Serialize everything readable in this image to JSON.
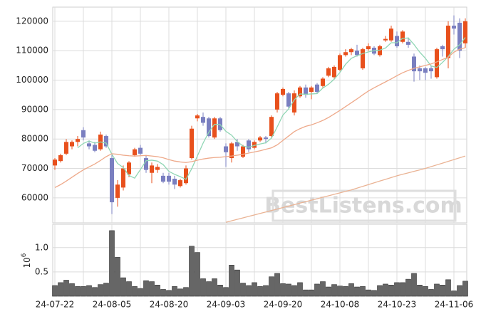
{
  "chart_data": {
    "type": "candlestick",
    "categories": [
      "24-07-22",
      null,
      null,
      null,
      null,
      null,
      null,
      null,
      null,
      null,
      "24-08-05",
      null,
      null,
      null,
      null,
      null,
      null,
      null,
      null,
      null,
      "24-08-20",
      null,
      null,
      null,
      null,
      null,
      null,
      null,
      null,
      null,
      "24-09-03",
      null,
      null,
      null,
      null,
      null,
      null,
      null,
      null,
      null,
      "24-09-20",
      null,
      null,
      null,
      null,
      null,
      null,
      null,
      null,
      null,
      "24-10-08",
      null,
      null,
      null,
      null,
      null,
      null,
      null,
      null,
      null,
      "24-10-23",
      null,
      null,
      null,
      null,
      null,
      null,
      null,
      null,
      null,
      "24-11-06",
      null,
      null
    ],
    "open": [
      71000,
      72500,
      75000,
      77500,
      79000,
      83000,
      78500,
      78000,
      76500,
      81000,
      73500,
      60000,
      63500,
      68000,
      74500,
      77000,
      73500,
      68500,
      69500,
      67500,
      67500,
      66500,
      64000,
      65000,
      73500,
      87000,
      87500,
      87000,
      80500,
      87000,
      77500,
      73500,
      79000,
      74000,
      79500,
      77000,
      79500,
      80500,
      81000,
      90000,
      95000,
      95500,
      89000,
      94500,
      97500,
      96000,
      98500,
      98000,
      101500,
      101000,
      103500,
      108500,
      109500,
      110000,
      104000,
      110500,
      111000,
      108500,
      113500,
      113500,
      115000,
      113000,
      113000,
      108000,
      104000,
      104000,
      104000,
      101000,
      111500,
      107500,
      118500,
      119500,
      112500
    ],
    "high": [
      73500,
      75000,
      80000,
      79500,
      81000,
      84000,
      79500,
      79000,
      82500,
      81500,
      75000,
      66000,
      71000,
      72500,
      77000,
      78000,
      74500,
      72000,
      71500,
      68500,
      68500,
      67500,
      66500,
      71000,
      84500,
      88500,
      89000,
      87500,
      87500,
      87500,
      78500,
      79000,
      80000,
      78000,
      80000,
      79500,
      81000,
      81000,
      88000,
      96000,
      97500,
      96000,
      96500,
      98000,
      98500,
      98000,
      99000,
      101000,
      104500,
      105000,
      109000,
      110500,
      111000,
      112000,
      111000,
      112500,
      111500,
      112000,
      115000,
      118500,
      116500,
      117000,
      114500,
      109000,
      105000,
      104500,
      105000,
      111000,
      112000,
      120000,
      122000,
      121000,
      121000
    ],
    "low": [
      69500,
      72000,
      74500,
      76500,
      77500,
      79500,
      76500,
      75500,
      76000,
      77000,
      54500,
      57000,
      62500,
      67000,
      74000,
      74500,
      68500,
      65000,
      68500,
      65000,
      64500,
      63000,
      63500,
      64500,
      73000,
      86000,
      84500,
      80500,
      80000,
      82500,
      70500,
      72000,
      76000,
      73500,
      75500,
      76500,
      79000,
      78500,
      80500,
      89000,
      94500,
      90000,
      88000,
      94000,
      94000,
      93500,
      95500,
      97500,
      101000,
      100500,
      103000,
      108000,
      108500,
      108000,
      103500,
      110000,
      108500,
      108000,
      113000,
      113000,
      111000,
      112500,
      111000,
      99500,
      100000,
      100000,
      100500,
      100500,
      108000,
      104000,
      115500,
      107500,
      111000
    ],
    "close": [
      73000,
      74500,
      79000,
      79000,
      80000,
      80500,
      77500,
      76000,
      81500,
      77500,
      58500,
      64500,
      70000,
      72000,
      76500,
      75000,
      69500,
      71000,
      70500,
      65500,
      65500,
      64500,
      66000,
      70000,
      83500,
      88000,
      85500,
      81000,
      87000,
      83000,
      75500,
      78500,
      77500,
      77500,
      76500,
      79000,
      80500,
      80000,
      87500,
      95500,
      97000,
      91000,
      95500,
      97500,
      95000,
      97500,
      96000,
      100500,
      104000,
      104500,
      108500,
      109500,
      110500,
      108500,
      110500,
      111500,
      109000,
      111500,
      114000,
      117500,
      111500,
      116500,
      112000,
      103000,
      103000,
      102500,
      103000,
      110500,
      110500,
      118500,
      117500,
      110000,
      120000
    ],
    "up_color": "#e8501c",
    "down_color": "#7a7fc0",
    "lines": [
      {
        "color": "#8fd6b4",
        "values": [
          null,
          null,
          null,
          null,
          77000,
          78500,
          79300,
          78600,
          79000,
          78600,
          74800,
          71700,
          70300,
          67600,
          66700,
          69600,
          72600,
          72800,
          72500,
          71300,
          69000,
          68000,
          67200,
          66300,
          69900,
          74200,
          78600,
          82300,
          85000,
          84900,
          82600,
          81300,
          79100,
          77600,
          77200,
          77800,
          78300,
          78700,
          80300,
          84100,
          88100,
          90200,
          93300,
          95300,
          95200,
          95300,
          95400,
          97300,
          98600,
          100300,
          102600,
          105400,
          107400,
          108300,
          109000,
          109600,
          110000,
          110200,
          110900,
          112700,
          112700,
          114200,
          114300,
          112100,
          109500,
          107400,
          104800,
          104300,
          106000,
          108000,
          110500,
          112000,
          114500
        ]
      },
      {
        "color": "#eea98a",
        "values": [
          63500,
          64500,
          65700,
          67000,
          68300,
          69500,
          70500,
          71500,
          72700,
          74000,
          75000,
          74800,
          74500,
          74300,
          74200,
          74300,
          74400,
          74200,
          74000,
          73600,
          73000,
          72500,
          72200,
          72000,
          72300,
          72800,
          73200,
          73500,
          73700,
          73800,
          74000,
          74200,
          74500,
          74800,
          75200,
          75600,
          76000,
          76500,
          77000,
          78000,
          79500,
          81000,
          82500,
          83500,
          84300,
          84800,
          85500,
          86300,
          87300,
          88500,
          89700,
          91000,
          92300,
          93600,
          95000,
          96300,
          97400,
          98400,
          99400,
          100400,
          101500,
          102500,
          103300,
          104000,
          104500,
          105000,
          105500,
          106200,
          107000,
          107800,
          109500,
          110500,
          111000
        ]
      },
      {
        "color": "#eab394",
        "values": [
          null,
          null,
          null,
          null,
          null,
          null,
          null,
          null,
          null,
          null,
          null,
          null,
          null,
          null,
          null,
          null,
          null,
          null,
          null,
          null,
          null,
          null,
          null,
          null,
          null,
          null,
          null,
          null,
          null,
          null,
          51700,
          52200,
          52700,
          53200,
          53700,
          54200,
          54700,
          55200,
          55700,
          56200,
          56700,
          57200,
          57700,
          58200,
          58700,
          59200,
          59700,
          60200,
          60700,
          61200,
          61700,
          62200,
          62700,
          63300,
          63900,
          64500,
          65100,
          65700,
          66300,
          66900,
          67500,
          68000,
          68500,
          69000,
          69500,
          70000,
          70600,
          71200,
          71800,
          72400,
          73000,
          73600,
          74200
        ]
      }
    ],
    "ylim": [
      51500,
      124800
    ],
    "yticks": [
      60000,
      70000,
      80000,
      90000,
      100000,
      110000,
      120000
    ],
    "grid": true,
    "watermark": "BestListens.com",
    "volume": {
      "color": "#666666",
      "values": [
        0.22,
        0.28,
        0.33,
        0.26,
        0.2,
        0.2,
        0.22,
        0.18,
        0.24,
        0.27,
        1.35,
        0.8,
        0.38,
        0.3,
        0.2,
        0.16,
        0.32,
        0.3,
        0.23,
        0.14,
        0.12,
        0.2,
        0.15,
        0.18,
        1.03,
        0.9,
        0.36,
        0.3,
        0.36,
        0.23,
        0.18,
        0.64,
        0.54,
        0.27,
        0.22,
        0.28,
        0.2,
        0.22,
        0.4,
        0.47,
        0.26,
        0.25,
        0.22,
        0.28,
        0.13,
        0.13,
        0.25,
        0.3,
        0.19,
        0.24,
        0.21,
        0.2,
        0.26,
        0.19,
        0.2,
        0.13,
        0.12,
        0.22,
        0.25,
        0.23,
        0.28,
        0.28,
        0.35,
        0.47,
        0.23,
        0.2,
        0.14,
        0.25,
        0.23,
        0.34,
        0.11,
        0.22,
        0.31
      ],
      "ylim": [
        0,
        1.48
      ],
      "yticks": [
        {
          "value": 0.5,
          "label": "0.5"
        },
        {
          "value": 1,
          "label": "1.0"
        }
      ],
      "axis_label_base": "10",
      "axis_label_exponent": "6"
    }
  }
}
